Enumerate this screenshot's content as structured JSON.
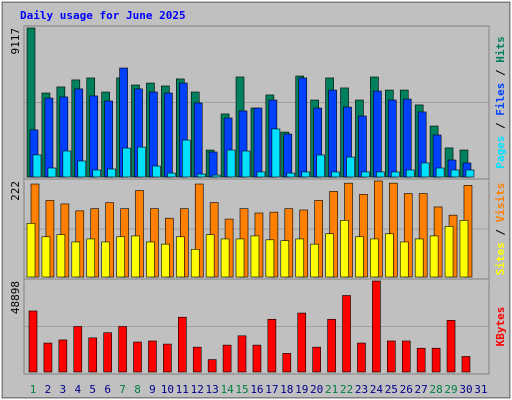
{
  "chart_data": [
    {
      "type": "bar",
      "title": "Daily usage for June 2025",
      "categories": [
        "1",
        "2",
        "3",
        "4",
        "5",
        "6",
        "7",
        "8",
        "9",
        "10",
        "11",
        "12",
        "13",
        "14",
        "15",
        "16",
        "17",
        "18",
        "19",
        "20",
        "21",
        "22",
        "23",
        "24",
        "25",
        "26",
        "27",
        "28",
        "29",
        "30",
        "31"
      ],
      "category_colors": [
        "#008040",
        "#00008b",
        "#00008b",
        "#00008b",
        "#00008b",
        "#00008b",
        "#008040",
        "#008040",
        "#00008b",
        "#00008b",
        "#00008b",
        "#00008b",
        "#00008b",
        "#008040",
        "#008040",
        "#00008b",
        "#00008b",
        "#00008b",
        "#00008b",
        "#00008b",
        "#008040",
        "#008040",
        "#00008b",
        "#00008b",
        "#00008b",
        "#00008b",
        "#00008b",
        "#008040",
        "#008040",
        "#00008b",
        "#00008b"
      ],
      "legend_separator": " / ",
      "ylim": [
        0,
        9117
      ],
      "yticks": [
        9117
      ],
      "series": [
        {
          "name": "Hits",
          "color": "#00805c",
          "values": [
            9117,
            5140,
            5510,
            5940,
            6060,
            5200,
            6060,
            5630,
            5750,
            5570,
            6000,
            5200,
            1650,
            3860,
            6120,
            4220,
            5020,
            2750,
            6180,
            4710,
            6060,
            5450,
            4710,
            6120,
            5320,
            5320,
            4410,
            3120,
            1780,
            1650,
            0
          ]
        },
        {
          "name": "Files",
          "color": "#0040ff",
          "values": [
            2880,
            4830,
            4900,
            5390,
            4960,
            4650,
            6670,
            5390,
            5200,
            5140,
            5750,
            4530,
            1530,
            3610,
            4040,
            4220,
            4710,
            2630,
            6060,
            4220,
            5320,
            4280,
            3730,
            5260,
            4710,
            4770,
            3980,
            2570,
            1040,
            860,
            0
          ]
        },
        {
          "name": "Pages",
          "color": "#00e0ff",
          "values": [
            1350,
            550,
            1590,
            980,
            430,
            490,
            1770,
            1830,
            670,
            240,
            2260,
            180,
            120,
            1650,
            1590,
            310,
            2940,
            240,
            310,
            1350,
            310,
            1220,
            310,
            310,
            310,
            430,
            860,
            550,
            430,
            430,
            0
          ]
        }
      ]
    },
    {
      "type": "bar",
      "ylim": [
        0,
        222
      ],
      "yticks": [
        222
      ],
      "series": [
        {
          "name": "Visits",
          "color": "#ff8000",
          "values": [
            215,
            177,
            169,
            153,
            158,
            172,
            158,
            200,
            158,
            136,
            158,
            215,
            172,
            134,
            158,
            148,
            150,
            158,
            155,
            177,
            198,
            217,
            191,
            222,
            217,
            193,
            193,
            162,
            143,
            212,
            0
          ]
        },
        {
          "name": "Sites",
          "color": "#ffff00",
          "values": [
            124,
            93,
            98,
            81,
            88,
            81,
            93,
            95,
            81,
            76,
            93,
            64,
            98,
            88,
            88,
            95,
            86,
            84,
            88,
            76,
            100,
            131,
            93,
            88,
            100,
            81,
            88,
            95,
            117,
            131,
            0
          ]
        }
      ]
    },
    {
      "type": "bar",
      "ylim": [
        0,
        48898
      ],
      "yticks": [
        48898
      ],
      "series": [
        {
          "name": "KBytes",
          "color": "#ff0000",
          "values": [
            32790,
            15560,
            17230,
            24450,
            18340,
            21120,
            24450,
            16120,
            16670,
            15000,
            29450,
            13340,
            6670,
            14450,
            19450,
            14450,
            28340,
            10000,
            31670,
            13340,
            28340,
            41120,
            15560,
            48898,
            16670,
            16670,
            12780,
            12780,
            27780,
            8340,
            0
          ]
        }
      ]
    }
  ]
}
